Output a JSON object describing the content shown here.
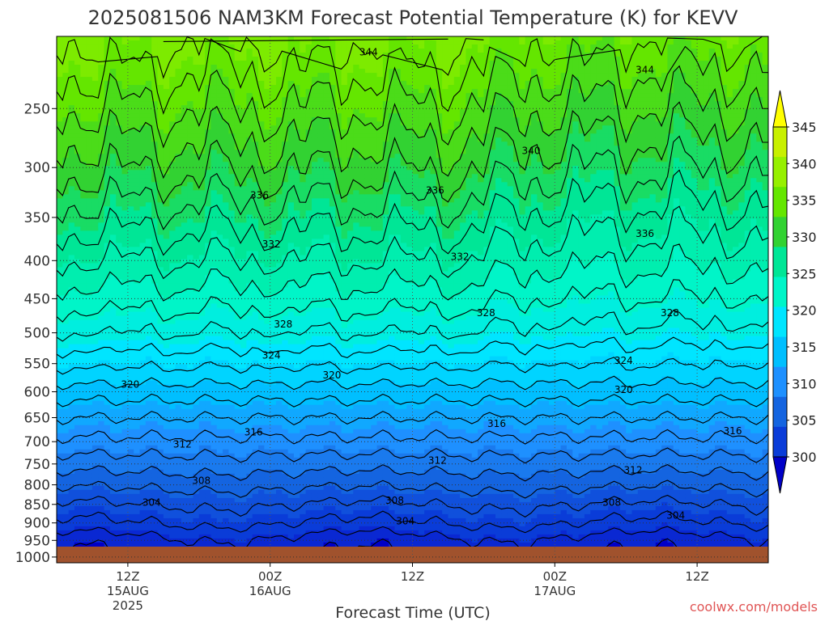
{
  "page_title": "2025081506 NAM3KM Forecast Potential Temperature (K) for KEVV",
  "credit": "coolwx.com/models",
  "chart_data": {
    "type": "heatmap",
    "title": "2025081506 NAM3KM Forecast Potential Temperature (K) for KEVV",
    "xlabel": "Forecast Time (UTC)",
    "ylabel": "",
    "x_range_hours": [
      0,
      60
    ],
    "x_ticks": [
      {
        "hour": 6,
        "lines": [
          "12Z",
          "15AUG",
          "2025"
        ]
      },
      {
        "hour": 18,
        "lines": [
          "00Z",
          "16AUG"
        ]
      },
      {
        "hour": 30,
        "lines": [
          "12Z"
        ]
      },
      {
        "hour": 42,
        "lines": [
          "00Z",
          "17AUG"
        ]
      },
      {
        "hour": 54,
        "lines": [
          "12Z"
        ]
      }
    ],
    "y_axis": {
      "scale": "log",
      "reversed": true,
      "range_hpa": [
        1018,
        200
      ]
    },
    "y_ticks": [
      1000,
      950,
      900,
      850,
      800,
      750,
      700,
      650,
      600,
      550,
      500,
      450,
      400,
      350,
      300,
      250
    ],
    "grid": true,
    "colorbar": {
      "levels": [
        300,
        305,
        310,
        315,
        320,
        325,
        330,
        335,
        340,
        345
      ],
      "colors": [
        "#0000c8",
        "#0a3cd8",
        "#1464e0",
        "#1e90ff",
        "#00bfff",
        "#00e5ff",
        "#00f5c8",
        "#00e696",
        "#32d232",
        "#64e600",
        "#96f000",
        "#c8f000",
        "#ffff00"
      ]
    },
    "contour_interval": 2,
    "contour_labels": [
      {
        "hour": 26.3,
        "p": 210,
        "v": 344
      },
      {
        "hour": 49.6,
        "p": 222,
        "v": 344
      },
      {
        "hour": 40.0,
        "p": 285,
        "v": 340
      },
      {
        "hour": 17.1,
        "p": 327,
        "v": 336
      },
      {
        "hour": 31.9,
        "p": 322,
        "v": 336
      },
      {
        "hour": 49.6,
        "p": 368,
        "v": 336
      },
      {
        "hour": 18.1,
        "p": 380,
        "v": 332
      },
      {
        "hour": 34.0,
        "p": 395,
        "v": 332
      },
      {
        "hour": 19.1,
        "p": 487,
        "v": 328
      },
      {
        "hour": 36.2,
        "p": 470,
        "v": 328
      },
      {
        "hour": 51.7,
        "p": 470,
        "v": 328
      },
      {
        "hour": 18.1,
        "p": 536,
        "v": 324
      },
      {
        "hour": 47.8,
        "p": 545,
        "v": 324
      },
      {
        "hour": 6.2,
        "p": 587,
        "v": 320
      },
      {
        "hour": 23.2,
        "p": 570,
        "v": 320
      },
      {
        "hour": 47.8,
        "p": 596,
        "v": 320
      },
      {
        "hour": 16.6,
        "p": 680,
        "v": 316
      },
      {
        "hour": 37.1,
        "p": 662,
        "v": 316
      },
      {
        "hour": 57.0,
        "p": 677,
        "v": 316
      },
      {
        "hour": 10.6,
        "p": 706,
        "v": 312
      },
      {
        "hour": 32.1,
        "p": 742,
        "v": 312
      },
      {
        "hour": 48.6,
        "p": 765,
        "v": 312
      },
      {
        "hour": 12.2,
        "p": 790,
        "v": 308
      },
      {
        "hour": 28.5,
        "p": 840,
        "v": 308
      },
      {
        "hour": 46.8,
        "p": 845,
        "v": 308
      },
      {
        "hour": 8.0,
        "p": 845,
        "v": 304
      },
      {
        "hour": 29.4,
        "p": 895,
        "v": 304
      },
      {
        "hour": 52.2,
        "p": 880,
        "v": 304
      }
    ]
  }
}
